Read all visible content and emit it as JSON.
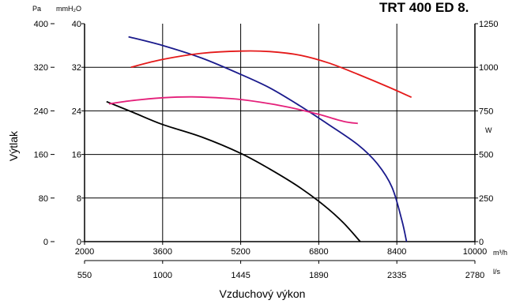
{
  "chart_data": {
    "type": "line",
    "title": "TRT 400 ED 8.",
    "xlabel": "Vzduchový výkon",
    "ylabel": "Výtlak",
    "x_unit": "m³/h",
    "x2_unit": "l/s",
    "y_unit_pa": "Pa",
    "y_unit_mmh2o": "mmH₂O",
    "y2_unit": "W",
    "xlim": [
      2000,
      10000
    ],
    "ylim": [
      0,
      400
    ],
    "y2lim": [
      0,
      1250
    ],
    "grid": true,
    "x_ticks": [
      "2000",
      "3600",
      "5200",
      "6800",
      "8400",
      "10000"
    ],
    "x2_ticks": [
      "550",
      "1000",
      "1445",
      "1890",
      "2335",
      "2780"
    ],
    "y_ticks_pa": [
      "0",
      "80",
      "160",
      "240",
      "320",
      "400"
    ],
    "y_ticks_mmh2o": [
      "0",
      "8",
      "16",
      "24",
      "32",
      "40"
    ],
    "y2_ticks": [
      "0",
      "250",
      "500",
      "750",
      "1000",
      "1250"
    ],
    "series": [
      {
        "axis": "left",
        "color": "#1a1a8c",
        "points": [
          [
            2900,
            376
          ],
          [
            3600,
            360
          ],
          [
            4400,
            337
          ],
          [
            5200,
            307
          ],
          [
            5800,
            282
          ],
          [
            6400,
            250
          ],
          [
            7000,
            215
          ],
          [
            7600,
            178
          ],
          [
            8000,
            143
          ],
          [
            8300,
            100
          ],
          [
            8500,
            40
          ],
          [
            8600,
            0
          ]
        ]
      },
      {
        "axis": "left",
        "color": "#000000",
        "points": [
          [
            2450,
            257
          ],
          [
            3000,
            237
          ],
          [
            3600,
            215
          ],
          [
            4400,
            192
          ],
          [
            5200,
            162
          ],
          [
            5800,
            133
          ],
          [
            6400,
            100
          ],
          [
            6900,
            67
          ],
          [
            7300,
            35
          ],
          [
            7650,
            0
          ]
        ]
      },
      {
        "axis": "right",
        "color": "#e41a1a",
        "points": [
          [
            2950,
            1000
          ],
          [
            3600,
            1045
          ],
          [
            4400,
            1080
          ],
          [
            5200,
            1093
          ],
          [
            5800,
            1090
          ],
          [
            6400,
            1070
          ],
          [
            7000,
            1025
          ],
          [
            7600,
            960
          ],
          [
            8200,
            890
          ],
          [
            8700,
            828
          ]
        ]
      },
      {
        "axis": "right",
        "color": "#e4207a",
        "points": [
          [
            2500,
            790
          ],
          [
            3000,
            810
          ],
          [
            3600,
            825
          ],
          [
            4200,
            830
          ],
          [
            5000,
            820
          ],
          [
            5600,
            800
          ],
          [
            6200,
            770
          ],
          [
            6800,
            730
          ],
          [
            7300,
            690
          ],
          [
            7600,
            678
          ]
        ]
      }
    ]
  }
}
